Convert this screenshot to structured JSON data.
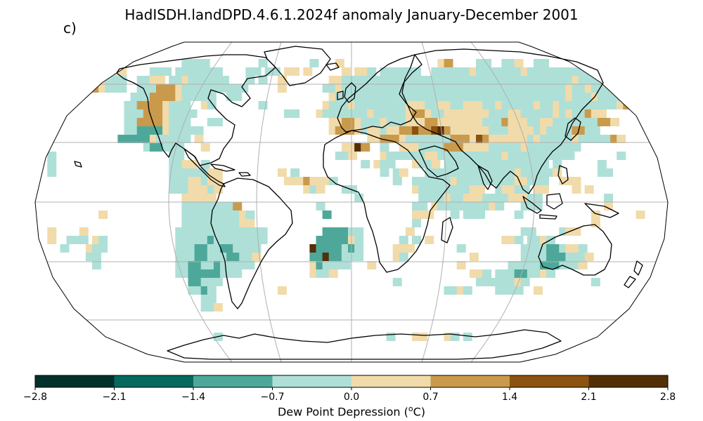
{
  "title": "HadISDH.landDPD.4.6.1.2024f anomaly January-December 2001",
  "panel_label": "c)",
  "colorbar": {
    "label_prefix": "Dew Point Depression (",
    "label_sup": "o",
    "label_suffix": "C)",
    "ticks": [
      "−2.8",
      "−2.1",
      "−1.4",
      "−0.7",
      "0.0",
      "0.7",
      "1.4",
      "2.1",
      "2.8"
    ],
    "colors": [
      "#02302b",
      "#05695e",
      "#4ea89a",
      "#aee0d8",
      "#f1dbaa",
      "#c99a4c",
      "#8c520f",
      "#532f07"
    ]
  },
  "legend_colors": {
    "dark_teal": "#05695e",
    "mid_teal": "#4ea89a",
    "light_teal": "#aee0d8",
    "light_tan": "#f1dbaa",
    "mid_brown": "#c99a4c",
    "dark_brown": "#8c520f",
    "darkest_brown": "#532f07"
  }
}
